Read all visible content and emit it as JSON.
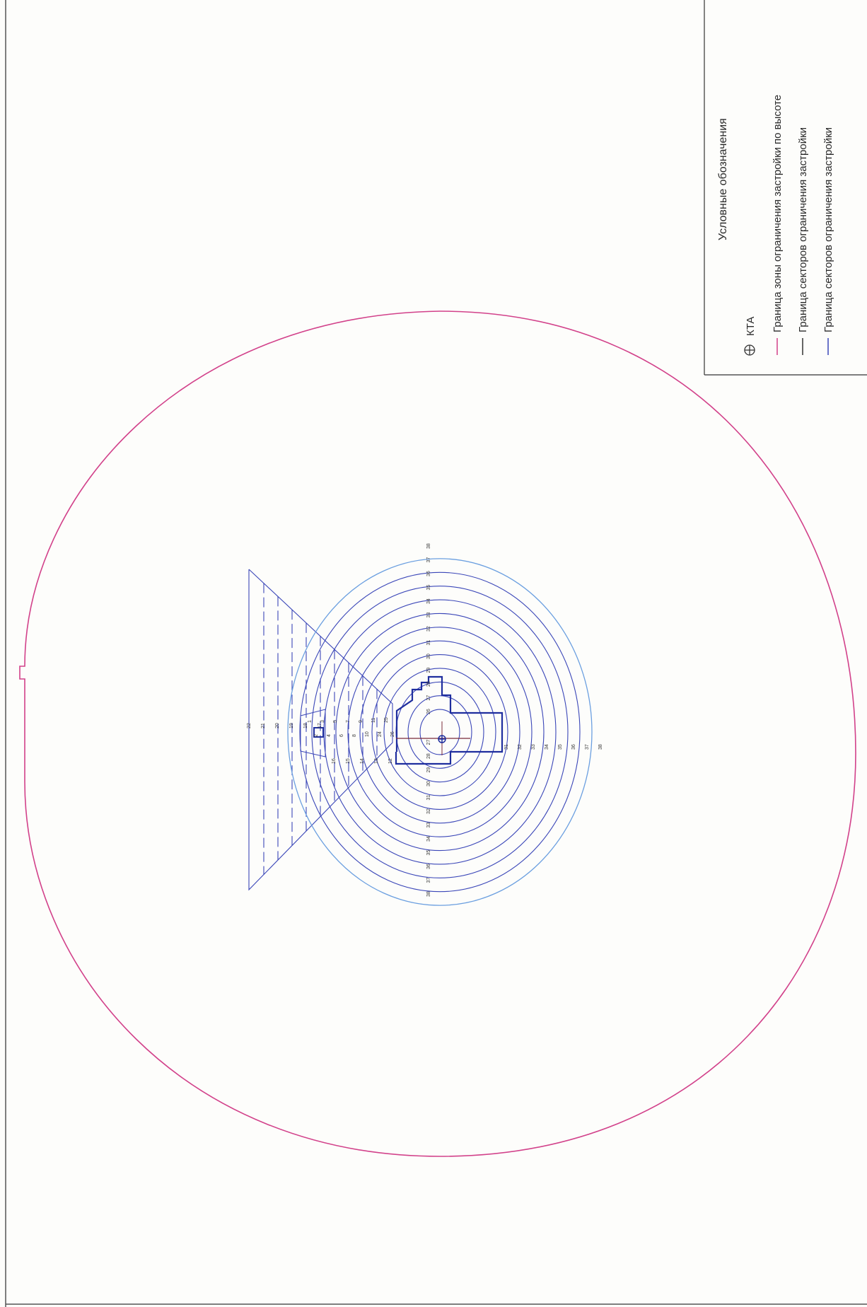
{
  "legend": {
    "title": "Условные обозначения",
    "items": [
      {
        "icon": "kta-symbol-icon",
        "label": "КТА"
      },
      {
        "icon": "magenta-line-icon",
        "color": "#d2418a",
        "label": "Граница зоны ограничения застройки по высоте"
      },
      {
        "icon": "black-line-icon",
        "color": "#333333",
        "label": "Граница секторов ограничения застройки"
      },
      {
        "icon": "blue-line-icon",
        "color": "#3a46b8",
        "label": "Граница секторов ограничения застройки"
      }
    ]
  },
  "map": {
    "colors": {
      "zone_boundary": "#d2418a",
      "sector_lines": "#3a46b8",
      "strip_outline": "#1f2e9e"
    },
    "left_ring_labels": [
      "38",
      "37",
      "36",
      "35",
      "34",
      "33",
      "32",
      "31",
      "30",
      "29",
      "28",
      "27"
    ],
    "right_ring_labels": [
      "26",
      "27",
      "28",
      "29",
      "30",
      "31",
      "32",
      "33",
      "34",
      "35",
      "36",
      "37",
      "38"
    ],
    "lower_ring_labels": [
      "31",
      "32",
      "33",
      "34",
      "35",
      "36",
      "37",
      "38"
    ],
    "fan_left_labels": [
      "22",
      "21",
      "20",
      "19",
      "18",
      "17",
      "16",
      "15",
      "14",
      "13",
      "12"
    ],
    "fan_inner_labels": [
      "1",
      "2",
      "3",
      "4",
      "5",
      "6",
      "7",
      "8",
      "9",
      "10",
      "11",
      "24",
      "25",
      "26"
    ]
  }
}
